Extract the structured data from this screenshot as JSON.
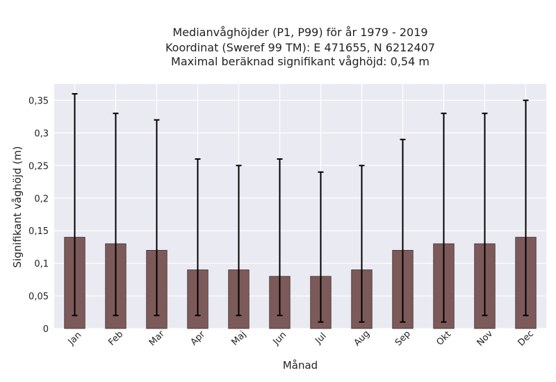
{
  "chart_data": {
    "type": "bar",
    "title_lines": [
      "Medianvåghöjder (P1, P99) för år 1979 - 2019",
      "Koordinat (Sweref 99 TM): E 471655, N 6212407",
      "Maximal beräknad signifikant våghöjd: 0,54 m"
    ],
    "xlabel": "Månad",
    "ylabel": "Signifikant våghöjd (m)",
    "categories": [
      "Jan",
      "Feb",
      "Mar",
      "Apr",
      "Maj",
      "Jun",
      "Jul",
      "Aug",
      "Sep",
      "Okt",
      "Nov",
      "Dec"
    ],
    "values": [
      0.14,
      0.13,
      0.12,
      0.09,
      0.09,
      0.08,
      0.08,
      0.09,
      0.12,
      0.13,
      0.13,
      0.14
    ],
    "p1": [
      0.02,
      0.02,
      0.02,
      0.02,
      0.02,
      0.02,
      0.01,
      0.01,
      0.01,
      0.01,
      0.02,
      0.02
    ],
    "p99": [
      0.36,
      0.33,
      0.32,
      0.26,
      0.25,
      0.26,
      0.24,
      0.25,
      0.29,
      0.33,
      0.33,
      0.35
    ],
    "ylim": [
      0,
      0.375
    ],
    "yticks": [
      0,
      0.05,
      0.1,
      0.15,
      0.2,
      0.25,
      0.3,
      0.35
    ],
    "ytick_labels": [
      "0",
      "0,05",
      "0,1",
      "0,15",
      "0,2",
      "0,25",
      "0,3",
      "0,35"
    ],
    "grid": true,
    "colors": {
      "bar": "#7d5a5a",
      "bar_edge": "#3a2a2a",
      "errorbar": "#000000",
      "plot_background": "#eaeaf2",
      "grid": "#ffffff"
    }
  }
}
